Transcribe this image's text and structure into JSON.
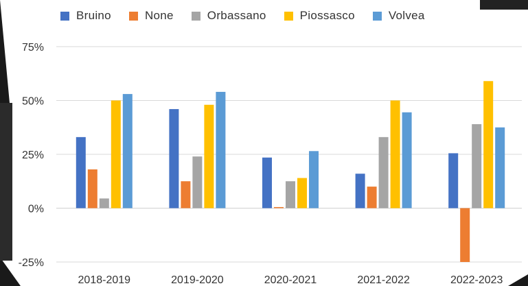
{
  "chart_data": {
    "type": "bar",
    "categories": [
      "2018-2019",
      "2019-2020",
      "2020-2021",
      "2021-2022",
      "2022-2023"
    ],
    "series": [
      {
        "name": "Bruino",
        "color": "#4472C4",
        "values": [
          33,
          46,
          23.5,
          16,
          25.5
        ]
      },
      {
        "name": "None",
        "color": "#ED7D31",
        "values": [
          18,
          12.5,
          0.5,
          10,
          -25
        ]
      },
      {
        "name": "Orbassano",
        "color": "#A5A5A5",
        "values": [
          4.5,
          24,
          12.5,
          33,
          39
        ]
      },
      {
        "name": "Piossasco",
        "color": "#FFC000",
        "values": [
          50,
          48,
          14,
          50,
          59
        ]
      },
      {
        "name": "Volvea",
        "color": "#5B9BD5",
        "values": [
          53,
          54,
          26.5,
          44.5,
          37.5
        ]
      }
    ],
    "yticks": [
      "75%",
      "50%",
      "25%",
      "0%",
      "-25%"
    ],
    "ylim": [
      -25,
      75
    ],
    "grid": true,
    "legend_position": "top"
  }
}
